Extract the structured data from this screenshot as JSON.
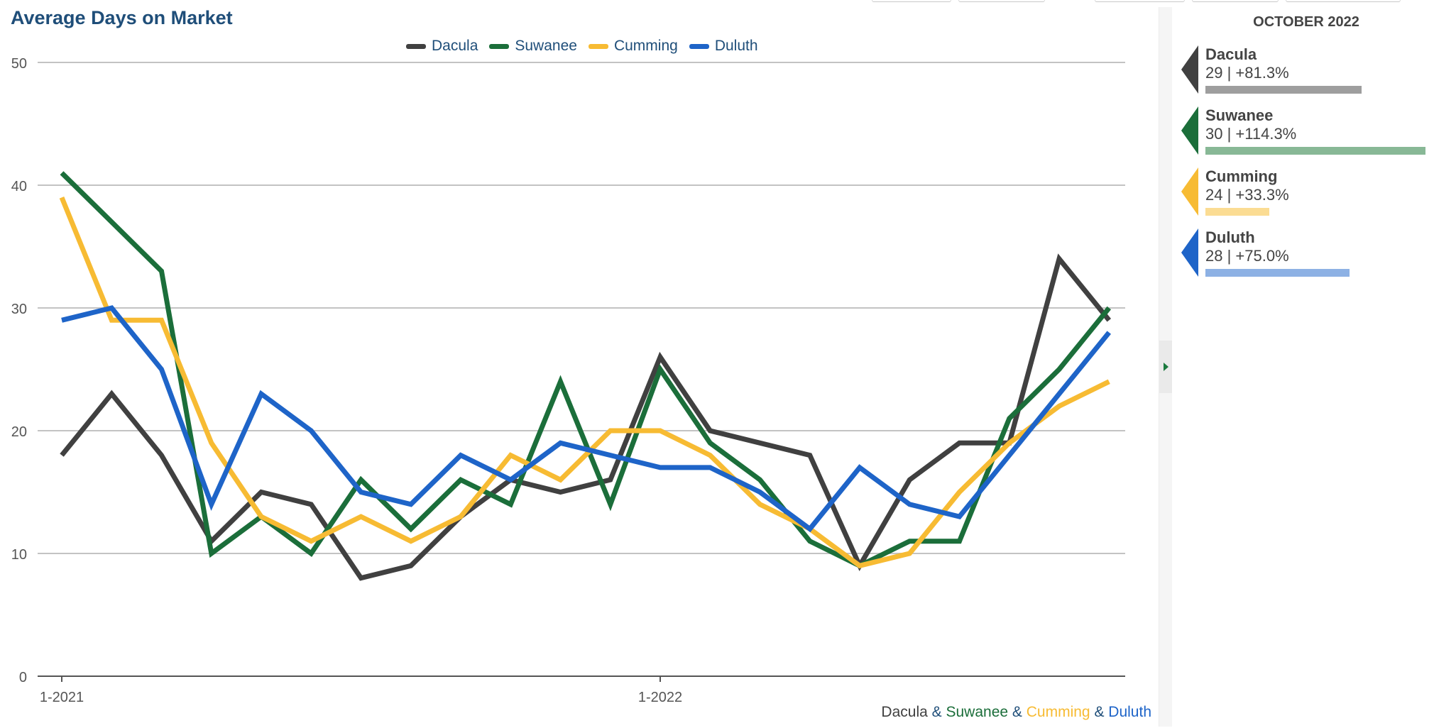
{
  "chart_data": {
    "type": "line",
    "title": "Average Days on Market",
    "ylim": [
      0,
      50
    ],
    "yticks": [
      "0",
      "10",
      "20",
      "30",
      "40",
      "50"
    ],
    "x_tick_labels": [
      {
        "index": 0,
        "label": "1-2021"
      },
      {
        "index": 12,
        "label": "1-2022"
      }
    ],
    "grid": true,
    "legend_placement": "top-center",
    "series": [
      {
        "name": "Dacula",
        "color": "#404040",
        "values": [
          18,
          23,
          18,
          11,
          15,
          14,
          8,
          9,
          13,
          16,
          15,
          16,
          26,
          20,
          19,
          18,
          9,
          16,
          19,
          19,
          34,
          29
        ]
      },
      {
        "name": "Suwanee",
        "color": "#1b6e3a",
        "values": [
          41,
          37,
          33,
          10,
          13,
          10,
          16,
          12,
          16,
          14,
          24,
          14,
          25,
          19,
          16,
          11,
          9,
          11,
          11,
          21,
          25,
          30
        ]
      },
      {
        "name": "Cumming",
        "color": "#f7bb33",
        "values": [
          39,
          29,
          29,
          19,
          13,
          11,
          13,
          11,
          13,
          18,
          16,
          20,
          20,
          18,
          14,
          12,
          9,
          10,
          15,
          19,
          22,
          24
        ]
      },
      {
        "name": "Duluth",
        "color": "#1e64c8",
        "values": [
          29,
          30,
          25,
          14,
          23,
          20,
          15,
          14,
          18,
          16,
          19,
          18,
          17,
          17,
          15,
          12,
          17,
          14,
          13,
          18,
          23,
          28
        ]
      }
    ]
  },
  "footer": {
    "parts": [
      {
        "text": "Dacula",
        "color": "#404040"
      },
      {
        "text": " & ",
        "color": "#1f4e79"
      },
      {
        "text": "Suwanee",
        "color": "#1b6e3a"
      },
      {
        "text": " & ",
        "color": "#1f4e79"
      },
      {
        "text": "Cumming",
        "color": "#f7bb33"
      },
      {
        "text": " & ",
        "color": "#1f4e79"
      },
      {
        "text": "Duluth",
        "color": "#1e64c8"
      }
    ]
  },
  "side_panel": {
    "title": "OCTOBER 2022",
    "cards": [
      {
        "name": "Dacula",
        "stats": "29 | +81.3%",
        "color": "#404040",
        "bar_color": "#9e9e9e",
        "change_pct": 81.3
      },
      {
        "name": "Suwanee",
        "stats": "30 | +114.3%",
        "color": "#1b6e3a",
        "bar_color": "#88b896",
        "change_pct": 114.3
      },
      {
        "name": "Cumming",
        "stats": "24 | +33.3%",
        "color": "#f7bb33",
        "bar_color": "#fbdc93",
        "change_pct": 33.3
      },
      {
        "name": "Duluth",
        "stats": "28 | +75.0%",
        "color": "#1e64c8",
        "bar_color": "#8db1e4",
        "change_pct": 75.0
      }
    ]
  }
}
